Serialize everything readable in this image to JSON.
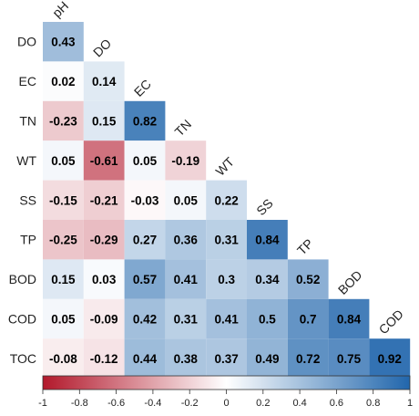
{
  "chart_data": {
    "type": "heatmap",
    "variables": [
      "pH",
      "DO",
      "EC",
      "TN",
      "WT",
      "SS",
      "TP",
      "BOD",
      "COD",
      "TOC"
    ],
    "row_labels": [
      "DO",
      "EC",
      "TN",
      "WT",
      "SS",
      "TP",
      "BOD",
      "COD",
      "TOC"
    ],
    "col_labels": [
      "pH",
      "DO",
      "EC",
      "TN",
      "WT",
      "SS",
      "TP",
      "BOD",
      "COD"
    ],
    "values": [
      [
        0.43
      ],
      [
        0.02,
        0.14
      ],
      [
        -0.23,
        0.15,
        0.82
      ],
      [
        0.05,
        -0.61,
        0.05,
        -0.19
      ],
      [
        -0.15,
        -0.21,
        -0.03,
        0.05,
        0.22
      ],
      [
        -0.25,
        -0.29,
        0.27,
        0.36,
        0.31,
        0.84
      ],
      [
        0.15,
        0.03,
        0.57,
        0.41,
        0.3,
        0.34,
        0.52
      ],
      [
        0.05,
        -0.09,
        0.42,
        0.31,
        0.41,
        0.5,
        0.7,
        0.84
      ],
      [
        -0.08,
        -0.12,
        0.44,
        0.38,
        0.37,
        0.49,
        0.72,
        0.75,
        0.92
      ]
    ],
    "value_labels": [
      [
        "0.43"
      ],
      [
        "0.02",
        "0.14"
      ],
      [
        "-0.23",
        "0.15",
        "0.82"
      ],
      [
        "0.05",
        "-0.61",
        "0.05",
        "-0.19"
      ],
      [
        "-0.15",
        "-0.21",
        "-0.03",
        "0.05",
        "0.22"
      ],
      [
        "-0.25",
        "-0.29",
        "0.27",
        "0.36",
        "0.31",
        "0.84"
      ],
      [
        "0.15",
        "0.03",
        "0.57",
        "0.41",
        "0.3",
        "0.34",
        "0.52"
      ],
      [
        "0.05",
        "-0.09",
        "0.42",
        "0.31",
        "0.41",
        "0.5",
        "0.7",
        "0.84"
      ],
      [
        "-0.08",
        "-0.12",
        "0.44",
        "0.38",
        "0.37",
        "0.49",
        "0.72",
        "0.75",
        "0.92"
      ]
    ],
    "colorbar": {
      "range": [
        -1,
        1
      ],
      "ticks": [
        -1,
        -0.8,
        -0.6,
        -0.4,
        -0.2,
        0,
        0.2,
        0.4,
        0.6,
        0.8,
        1
      ],
      "tick_labels": [
        "-1",
        "-0.8",
        "-0.6",
        "-0.4",
        "-0.2",
        "0",
        "0.2",
        "0.4",
        "0.6",
        "0.8",
        "1"
      ],
      "colors": {
        "negative": "#B2182B",
        "mid": "#FFFFFF",
        "positive": "#2166AC"
      }
    },
    "layout": "lower-triangle"
  }
}
